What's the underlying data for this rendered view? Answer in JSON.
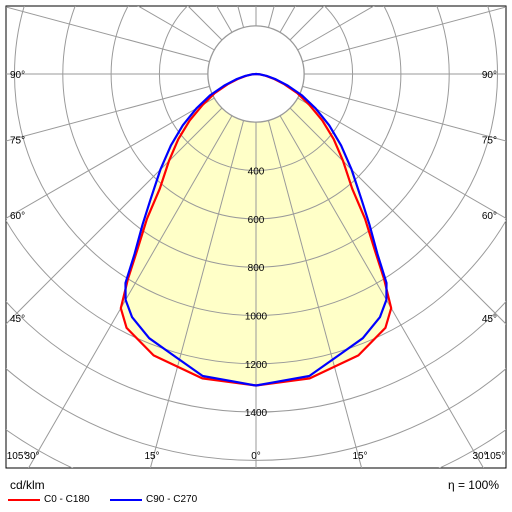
{
  "chart_data": {
    "type": "polar-intensity",
    "unit_label": "cd/klm",
    "efficiency_label": "η = 100%",
    "radial_ticks": [
      400,
      600,
      800,
      1000,
      1200,
      1400
    ],
    "angle_ticks": [
      {
        "angle": 105,
        "label": "105°"
      },
      {
        "angle": 90,
        "label": "90°"
      },
      {
        "angle": 75,
        "label": "75°"
      },
      {
        "angle": 60,
        "label": "60°"
      },
      {
        "angle": 45,
        "label": "45°"
      },
      {
        "angle": 30,
        "label": "30°"
      },
      {
        "angle": 15,
        "label": "15°"
      },
      {
        "angle": 0,
        "label": "0°"
      }
    ],
    "series": [
      {
        "name": "C0 - C180",
        "color": "#ff0000",
        "points": [
          [
            0,
            1290
          ],
          [
            10,
            1280
          ],
          [
            20,
            1240
          ],
          [
            27,
            1180
          ],
          [
            30,
            1120
          ],
          [
            32,
            1000
          ],
          [
            34,
            880
          ],
          [
            37,
            750
          ],
          [
            40,
            620
          ],
          [
            45,
            510
          ],
          [
            50,
            420
          ],
          [
            55,
            335
          ],
          [
            60,
            255
          ],
          [
            65,
            190
          ],
          [
            70,
            125
          ],
          [
            75,
            75
          ],
          [
            80,
            40
          ],
          [
            85,
            15
          ],
          [
            90,
            0
          ]
        ]
      },
      {
        "name": "C90 - C270",
        "color": "#0000ff",
        "points": [
          [
            0,
            1290
          ],
          [
            10,
            1270
          ],
          [
            17,
            1210
          ],
          [
            22,
            1180
          ],
          [
            27,
            1130
          ],
          [
            30,
            1080
          ],
          [
            32,
            1020
          ],
          [
            34,
            900
          ],
          [
            37,
            780
          ],
          [
            40,
            680
          ],
          [
            45,
            560
          ],
          [
            50,
            460
          ],
          [
            55,
            370
          ],
          [
            60,
            285
          ],
          [
            65,
            210
          ],
          [
            70,
            140
          ],
          [
            75,
            85
          ],
          [
            80,
            45
          ],
          [
            85,
            18
          ],
          [
            90,
            0
          ]
        ]
      }
    ]
  }
}
